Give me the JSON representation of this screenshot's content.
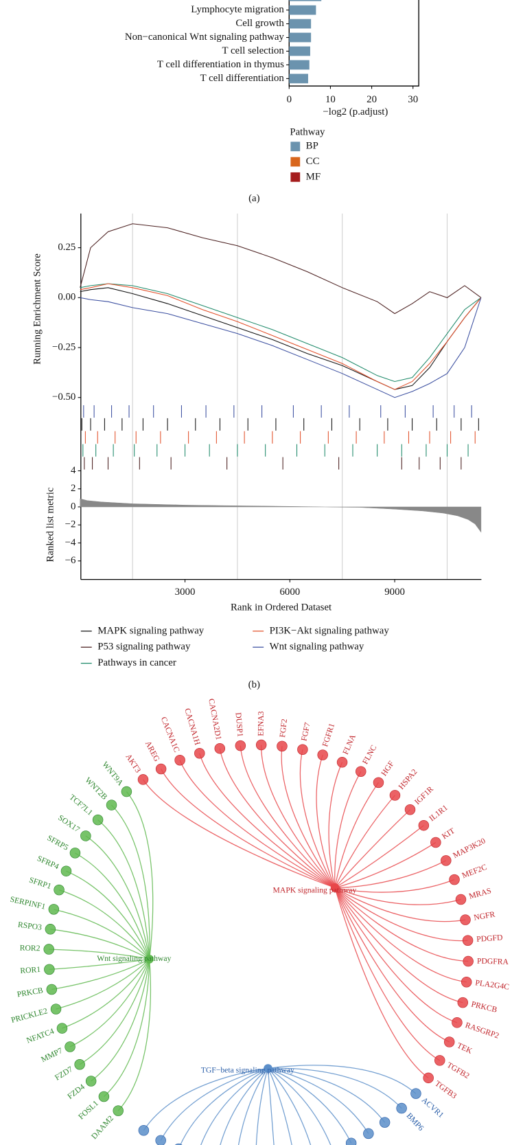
{
  "chart_data": [
    {
      "type": "bar",
      "orientation": "horizontal",
      "categories": [
        null,
        "Lymphocyte migration",
        "Cell growth",
        "Non−canonical Wnt signaling pathway",
        "T cell selection",
        "T cell differentiation in thymus",
        "T cell differentiation"
      ],
      "values": [
        7.8,
        6.5,
        5.3,
        5.3,
        5.1,
        4.9,
        4.6
      ],
      "groups": [
        "BP",
        "BP",
        "BP",
        "BP",
        "BP",
        "BP",
        "BP"
      ],
      "xlim": [
        0,
        31.4
      ],
      "xticks": [
        0,
        10,
        20,
        30
      ],
      "x_label": "−log2 (p.adjust)",
      "legend_title": "Pathway",
      "legend": [
        {
          "name": "BP",
          "color": "#6b93ae"
        },
        {
          "name": "CC",
          "color": "#d8661c"
        },
        {
          "name": "MF",
          "color": "#a51d1d"
        }
      ],
      "panel_label": "(a)"
    },
    {
      "type": "gsea",
      "x": [
        0,
        300,
        800,
        1500,
        2500,
        3500,
        4500,
        5500,
        6500,
        7500,
        8500,
        9000,
        9500,
        10000,
        10500,
        11000,
        11470
      ],
      "series": [
        {
          "name": "MAPK signaling pathway",
          "color": "#111111",
          "values": [
            0.03,
            0.04,
            0.05,
            0.02,
            -0.03,
            -0.09,
            -0.15,
            -0.21,
            -0.28,
            -0.34,
            -0.42,
            -0.46,
            -0.44,
            -0.35,
            -0.22,
            -0.1,
            0
          ],
          "hits": [
            50,
            300,
            700,
            1200,
            1800,
            2500,
            3300,
            4000,
            4800,
            5600,
            6400,
            7200,
            8000,
            8800,
            9500,
            10200,
            10900,
            11400
          ]
        },
        {
          "name": "P53 signaling pathway",
          "color": "#4a1e1e",
          "values": [
            0.05,
            0.25,
            0.33,
            0.37,
            0.35,
            0.3,
            0.26,
            0.2,
            0.13,
            0.05,
            -0.02,
            -0.08,
            -0.03,
            0.03,
            0,
            0.06,
            0
          ],
          "hits": [
            120,
            350,
            800,
            1700,
            2600,
            4200,
            5800,
            7400,
            9200,
            9700,
            10300,
            10900
          ]
        },
        {
          "name": "Pathways in cancer",
          "color": "#1f8a6a",
          "values": [
            0.05,
            0.06,
            0.07,
            0.06,
            0.02,
            -0.04,
            -0.1,
            -0.16,
            -0.23,
            -0.3,
            -0.39,
            -0.42,
            -0.4,
            -0.3,
            -0.18,
            -0.06,
            0
          ],
          "hits": [
            80,
            450,
            950,
            1550,
            2200,
            3000,
            3700,
            4500,
            5300,
            6200,
            7000,
            7800,
            8500,
            9200,
            9900,
            10500,
            11100
          ]
        },
        {
          "name": "PI3K−Akt signaling pathway",
          "color": "#e2502a",
          "values": [
            0.04,
            0.05,
            0.07,
            0.05,
            0.01,
            -0.06,
            -0.12,
            -0.19,
            -0.26,
            -0.33,
            -0.42,
            -0.46,
            -0.42,
            -0.33,
            -0.22,
            -0.1,
            0
          ],
          "hits": [
            150,
            500,
            1000,
            1600,
            2300,
            3100,
            3900,
            4700,
            5500,
            6300,
            7100,
            7900,
            8700,
            9400,
            10000,
            10600,
            11300
          ]
        },
        {
          "name": "Wnt signaling pathway",
          "color": "#3b4fa0",
          "values": [
            0,
            -0.01,
            -0.02,
            -0.05,
            -0.08,
            -0.13,
            -0.18,
            -0.24,
            -0.31,
            -0.38,
            -0.46,
            -0.5,
            -0.47,
            -0.43,
            -0.38,
            -0.25,
            0
          ],
          "hits": [
            100,
            400,
            900,
            1400,
            2100,
            2900,
            3600,
            4400,
            5200,
            6100,
            6900,
            7700,
            8600,
            9300,
            10100,
            10700,
            11200
          ]
        }
      ],
      "xlim": [
        0,
        11480
      ],
      "xticks": [
        3000,
        6000,
        9000
      ],
      "xminor": [
        1500,
        4500,
        7500,
        10500
      ],
      "x_label": "Rank in Ordered Dataset",
      "ylim": [
        -0.535,
        0.421
      ],
      "yticks": [
        {
          "value": -0.5,
          "label": "−0.50"
        },
        {
          "value": -0.25,
          "label": "−0.25"
        },
        {
          "value": 0,
          "label": "0.00"
        },
        0.25
      ],
      "y_label": "Running Enrichment Score",
      "metric": {
        "y_label": "Ranked list metric",
        "color": "#888888",
        "x": [
          0,
          200,
          600,
          1500,
          3000,
          4500,
          6000,
          7000,
          8000,
          9000,
          9800,
          10400,
          10800,
          11100,
          11300,
          11470
        ],
        "values": [
          0.9,
          0.7,
          0.55,
          0.35,
          0.2,
          0.12,
          0.05,
          0,
          -0.05,
          -0.25,
          -0.45,
          -0.7,
          -1,
          -1.4,
          -1.9,
          -2.8
        ],
        "ylim": [
          -8.05,
          4
        ],
        "yticks": [
          {
            "value": -6,
            "label": "−6"
          },
          {
            "value": -4,
            "label": "−4"
          },
          {
            "value": -2,
            "label": "−2"
          },
          0,
          2,
          4
        ]
      },
      "panel_label": "(b)"
    }
  ],
  "network": {
    "groups": [
      {
        "hub": "MAPK signaling pathway",
        "color": "#e8474a",
        "text_color": "#c0242a",
        "genes": [
          "AKT3",
          "AREG",
          "CACNA1C",
          "CACNA1H",
          "CACNA2D1",
          "DUSP1",
          "EFNA3",
          "FGF2",
          "FGF7",
          "FGFR1",
          "FLNA",
          "FLNC",
          "HGF",
          "HSPA2",
          "IGF1R",
          "IL1R1",
          "KIT",
          "MAP3K20",
          "MEF2C",
          "MRAS",
          "NGFR",
          "PDGFD",
          "PDGFRA",
          "PLA2G4C",
          "PRKCB",
          "RASGRP2",
          "TEK",
          "TGFB2",
          "TGFB3"
        ]
      },
      {
        "hub": "Wnt signaling pathway",
        "color": "#5fb84f",
        "text_color": "#2e862e",
        "genes": [
          "WNT9A",
          "WNT2B",
          "TCF7L1",
          "SOX17",
          "SFRP5",
          "SFRP4",
          "SFRP1",
          "SERPINF1",
          "RSPO3",
          "ROR2",
          "ROR1",
          "PRKCB",
          "PRICKLE2",
          "NFATC4",
          "MMP7",
          "FZD7",
          "FZD4",
          "FOSL1",
          "DAAM2"
        ]
      },
      {
        "hub": "TGF−beta signaling pathway",
        "color": "#5b8ec9",
        "text_color": "#2a5ea8",
        "genes": [
          "ACVR1",
          "BMP6"
        ]
      }
    ]
  }
}
